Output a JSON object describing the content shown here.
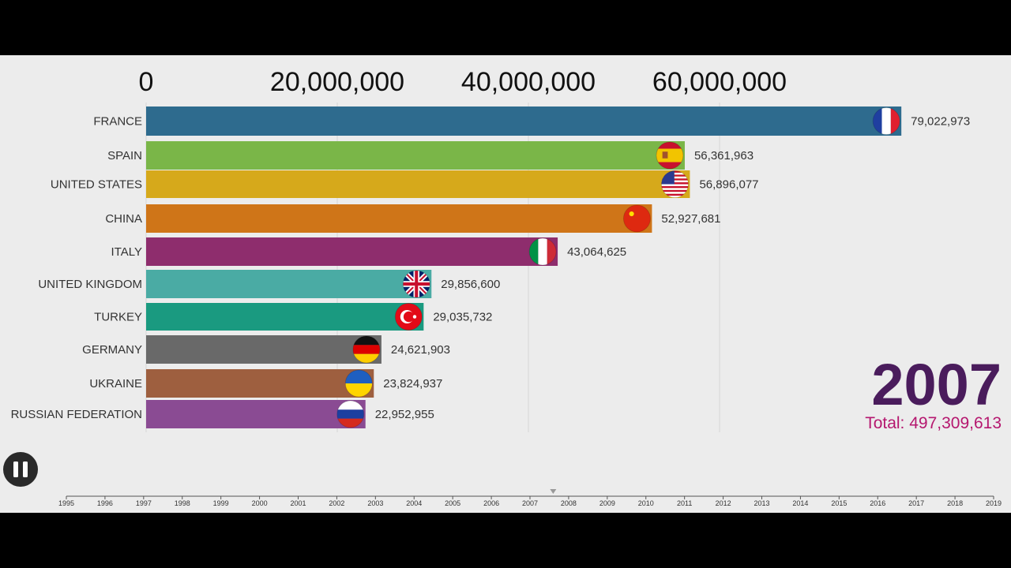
{
  "chart_data": {
    "type": "bar",
    "orientation": "horizontal",
    "x_ticks": [
      "0",
      "20,000,000",
      "40,000,000",
      "60,000,000"
    ],
    "xlim": [
      0,
      80000000
    ],
    "grid": true,
    "categories": [
      "FRANCE",
      "SPAIN",
      "UNITED STATES",
      "CHINA",
      "ITALY",
      "UNITED KINGDOM",
      "TURKEY",
      "GERMANY",
      "UKRAINE",
      "RUSSIAN FEDERATION"
    ],
    "values": [
      79022973,
      56361963,
      56896077,
      52927681,
      43064625,
      29856600,
      29035732,
      24621903,
      23824937,
      22952955
    ],
    "value_labels": [
      "79,022,973",
      "56,361,963",
      "56,896,077",
      "52,927,681",
      "43,064,625",
      "29,856,600",
      "29,035,732",
      "24,621,903",
      "23,824,937",
      "22,952,955"
    ],
    "colors": [
      "#2e6b8e",
      "#7ab648",
      "#d6a91b",
      "#cf7518",
      "#8e2d6d",
      "#4aaba4",
      "#1a9a80",
      "#696969",
      "#9e5f3f",
      "#8a4b93"
    ],
    "flags": [
      "france-flag-icon",
      "spain-flag-icon",
      "usa-flag-icon",
      "china-flag-icon",
      "italy-flag-icon",
      "uk-flag-icon",
      "turkey-flag-icon",
      "germany-flag-icon",
      "ukraine-flag-icon",
      "russia-flag-icon"
    ]
  },
  "year": "2007",
  "total": "Total: 497,309,613",
  "timeline": {
    "years": [
      "1995",
      "1996",
      "1997",
      "1998",
      "1999",
      "2000",
      "2001",
      "2002",
      "2003",
      "2004",
      "2005",
      "2006",
      "2007",
      "2008",
      "2009",
      "2010",
      "2011",
      "2012",
      "2013",
      "2014",
      "2015",
      "2016",
      "2017",
      "2018",
      "2019"
    ],
    "current_position": 2007.6
  },
  "controls": {
    "pause_icon": "pause-icon"
  }
}
